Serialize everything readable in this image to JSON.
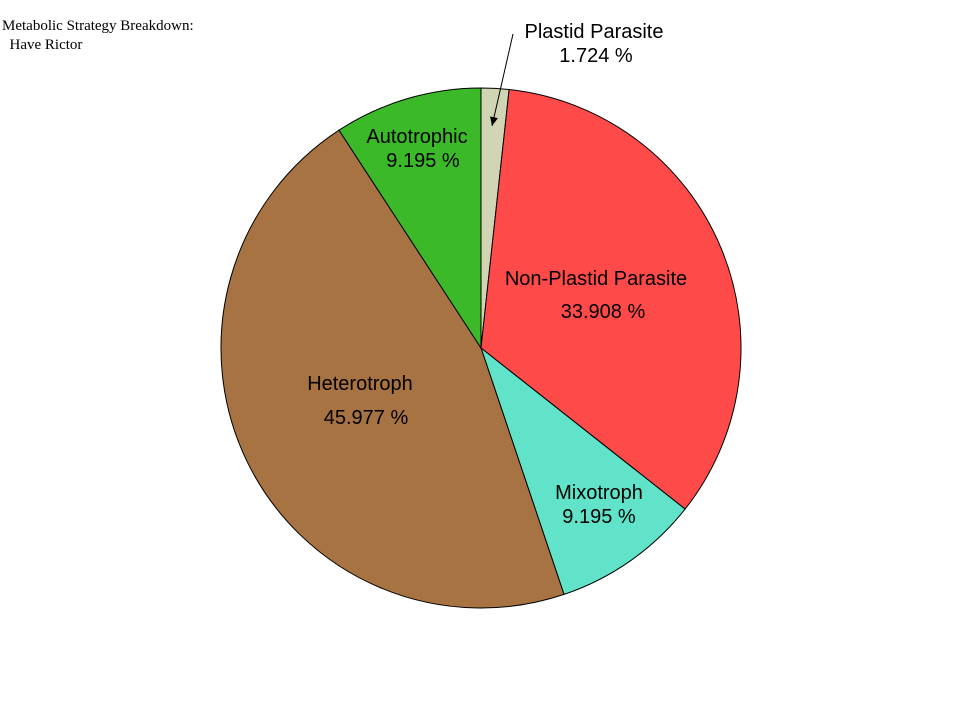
{
  "chart_data": {
    "type": "pie",
    "title_lines": [
      "Metabolic Strategy Breakdown:",
      "  Have Rictor"
    ],
    "slices": [
      {
        "label": "Plastid Parasite",
        "value": 1.724,
        "value_text": "1.724 %",
        "color": "#d1d5b3"
      },
      {
        "label": "Non-Plastid Parasite",
        "value": 33.908,
        "value_text": "33.908 %",
        "color": "#ff4a4a"
      },
      {
        "label": "Mixotroph",
        "value": 9.195,
        "value_text": "9.195 %",
        "color": "#60e3c8"
      },
      {
        "label": "Heterotroph",
        "value": 45.977,
        "value_text": "45.977 %",
        "color": "#a87342"
      },
      {
        "label": "Autotrophic",
        "value": 9.195,
        "value_text": "9.195 %",
        "color": "#3cb929"
      }
    ],
    "start_direction": "12 o'clock",
    "direction": "clockwise",
    "legend": "none",
    "grid": false
  }
}
